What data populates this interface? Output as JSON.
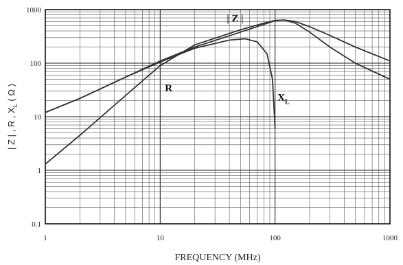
{
  "chart_data": {
    "type": "line",
    "xscale": "log",
    "yscale": "log",
    "xlim": [
      1,
      1000
    ],
    "ylim": [
      0.1,
      1000
    ],
    "grid": true,
    "xlabel": "FREQUENCY (MHz)",
    "ylabel_parts": [
      "| Z | , R , X",
      "L",
      " ( Ω )"
    ],
    "x_ticks": [
      "1",
      "10",
      "100",
      "1000"
    ],
    "y_ticks": [
      "0.1",
      "1",
      "10",
      "100",
      "1000"
    ],
    "series": [
      {
        "name": "| Z |",
        "x": [
          1,
          2,
          5,
          10,
          20,
          50,
          80,
          100,
          120,
          150,
          200,
          300,
          500,
          1000
        ],
        "y": [
          12,
          22,
          55,
          110,
          200,
          380,
          530,
          620,
          640,
          600,
          480,
          330,
          200,
          110
        ]
      },
      {
        "name": "R",
        "x": [
          1,
          2,
          5,
          10,
          20,
          50,
          80,
          100,
          120,
          150,
          200,
          300,
          500,
          1000
        ],
        "y": [
          1.3,
          4.5,
          25,
          90,
          220,
          420,
          560,
          630,
          640,
          560,
          380,
          200,
          100,
          50
        ]
      },
      {
        "name": "X",
        "subscript": "L",
        "x": [
          1,
          2,
          5,
          10,
          20,
          40,
          55,
          70,
          85,
          95,
          100
        ],
        "y": [
          12,
          22,
          55,
          105,
          190,
          270,
          285,
          250,
          150,
          50,
          6
        ]
      }
    ],
    "labels": [
      {
        "series": 0,
        "text": "| Z |",
        "at": [
          38,
          600
        ]
      },
      {
        "series": 1,
        "text": "R",
        "at": [
          11,
          30
        ]
      },
      {
        "series": 2,
        "text": "X",
        "sub": "L",
        "at": [
          105,
          20
        ]
      }
    ]
  }
}
